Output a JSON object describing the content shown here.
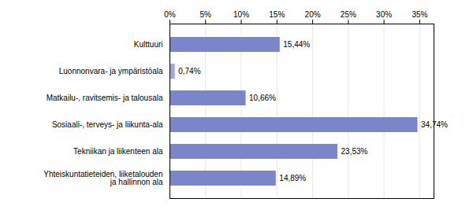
{
  "chart_data": {
    "type": "bar",
    "orientation": "horizontal",
    "categories": [
      "Kulttuuri",
      "Luonnonvara- ja ympäristöala",
      "Matkailu-, ravitsemis- ja talousala",
      "Sosiaali-, terveys- ja liikunta-ala",
      "Tekniikan ja liikenteen ala",
      "Yhteiskuntatieteiden, liiketalouden\nja hallinnon ala"
    ],
    "values": [
      15.44,
      0.74,
      10.66,
      34.74,
      23.53,
      14.89
    ],
    "value_labels": [
      "15,44%",
      "0,74%",
      "10,66%",
      "34,74%",
      "23,53%",
      "14,89%"
    ],
    "data_labels": true,
    "colors": [
      "#7b86c8",
      "#9da8d8",
      "#7b86c8",
      "#7b86c8",
      "#7b86c8",
      "#7b86c8"
    ],
    "xlim": [
      0,
      37
    ],
    "xticks": [
      {
        "value": 0,
        "label": "0%"
      },
      {
        "value": 5,
        "label": "5%"
      },
      {
        "value": 10,
        "label": "10%"
      },
      {
        "value": 15,
        "label": "15%"
      },
      {
        "value": 20,
        "label": "20%"
      },
      {
        "value": 25,
        "label": "25%"
      },
      {
        "value": 30,
        "label": "30%"
      },
      {
        "value": 35,
        "label": "35%"
      }
    ],
    "grid": true
  }
}
